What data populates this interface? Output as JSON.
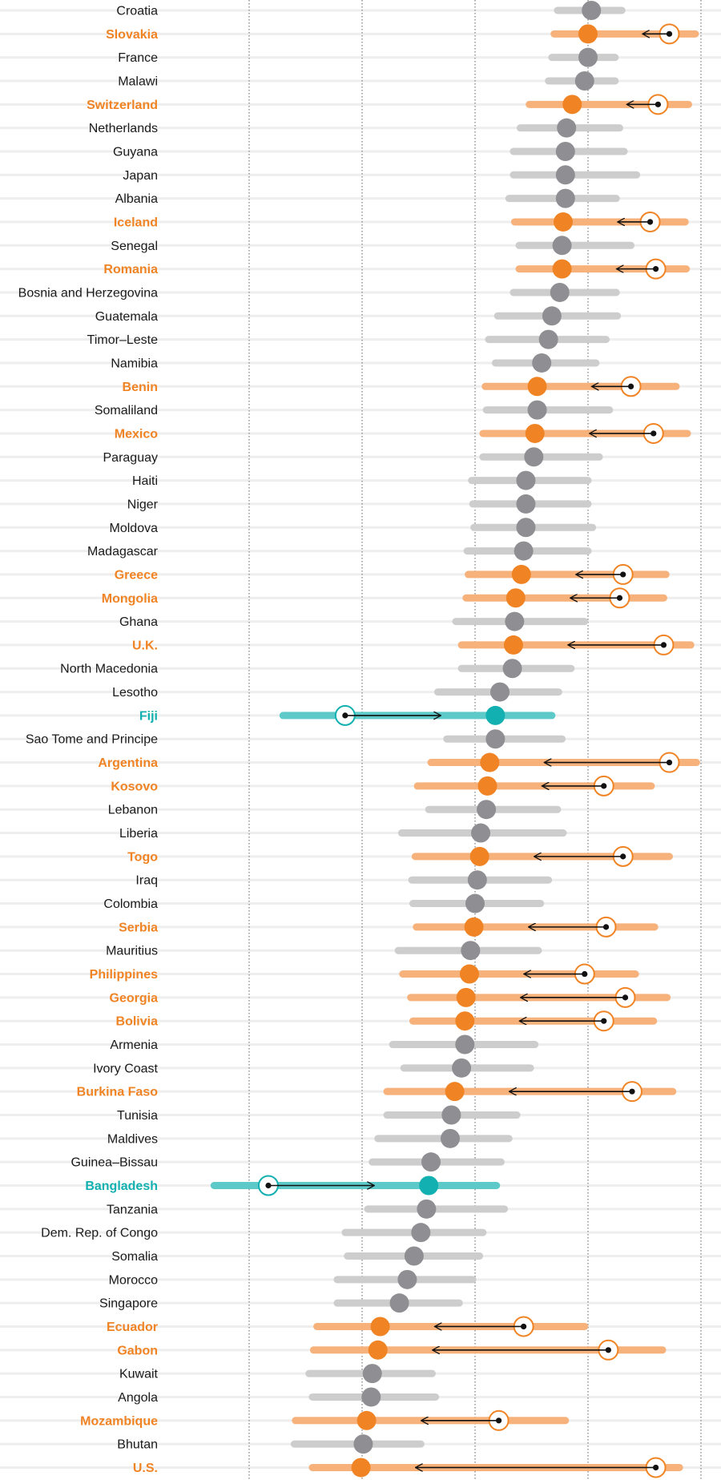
{
  "chart_data": {
    "type": "dot-range",
    "x_lim": [
      0,
      5
    ],
    "gridlines": [
      1,
      2,
      3,
      4,
      5
    ],
    "colors": {
      "neutral_dot": "#8e8e93",
      "neutral_band": "#cdcdcd",
      "orange": "#f08424",
      "orange_band": "#f7b27c",
      "teal": "#12b0b0",
      "teal_band": "#5ec9c9",
      "row_line": "#eeeeee",
      "grid": "#7a7a7a",
      "arrow": "#111111"
    },
    "countries": [
      {
        "name": "Croatia",
        "value": 4.03,
        "low": 3.73,
        "high": 4.3,
        "group": "none"
      },
      {
        "name": "Slovakia",
        "value": 4.0,
        "low": 3.7,
        "high": 4.95,
        "group": "orange",
        "prev": 4.72
      },
      {
        "name": "France",
        "value": 4.0,
        "low": 3.68,
        "high": 4.24,
        "group": "none"
      },
      {
        "name": "Malawi",
        "value": 3.97,
        "low": 3.65,
        "high": 4.24,
        "group": "none"
      },
      {
        "name": "Switzerland",
        "value": 3.86,
        "low": 3.48,
        "high": 4.89,
        "group": "orange",
        "prev": 4.62
      },
      {
        "name": "Netherlands",
        "value": 3.81,
        "low": 3.4,
        "high": 4.28,
        "group": "none"
      },
      {
        "name": "Guyana",
        "value": 3.8,
        "low": 3.34,
        "high": 4.32,
        "group": "none"
      },
      {
        "name": "Japan",
        "value": 3.8,
        "low": 3.34,
        "high": 4.43,
        "group": "none"
      },
      {
        "name": "Albania",
        "value": 3.8,
        "low": 3.3,
        "high": 4.25,
        "group": "none"
      },
      {
        "name": "Iceland",
        "value": 3.78,
        "low": 3.35,
        "high": 4.86,
        "group": "orange",
        "prev": 4.55
      },
      {
        "name": "Senegal",
        "value": 3.77,
        "low": 3.39,
        "high": 4.38,
        "group": "none"
      },
      {
        "name": "Romania",
        "value": 3.77,
        "low": 3.39,
        "high": 4.87,
        "group": "orange",
        "prev": 4.6
      },
      {
        "name": "Bosnia and Herzegovina",
        "value": 3.75,
        "low": 3.34,
        "high": 4.25,
        "group": "none"
      },
      {
        "name": "Guatemala",
        "value": 3.68,
        "low": 3.2,
        "high": 4.26,
        "group": "none"
      },
      {
        "name": "Timor–Leste",
        "value": 3.65,
        "low": 3.12,
        "high": 4.16,
        "group": "none"
      },
      {
        "name": "Namibia",
        "value": 3.59,
        "low": 3.18,
        "high": 4.07,
        "group": "none"
      },
      {
        "name": "Benin",
        "value": 3.55,
        "low": 3.09,
        "high": 4.78,
        "group": "orange",
        "prev": 4.38
      },
      {
        "name": "Somaliland",
        "value": 3.55,
        "low": 3.1,
        "high": 4.19,
        "group": "none"
      },
      {
        "name": "Mexico",
        "value": 3.53,
        "low": 3.07,
        "high": 4.88,
        "group": "orange",
        "prev": 4.58
      },
      {
        "name": "Paraguay",
        "value": 3.52,
        "low": 3.07,
        "high": 4.1,
        "group": "none"
      },
      {
        "name": "Haiti",
        "value": 3.45,
        "low": 2.97,
        "high": 4.0,
        "group": "none"
      },
      {
        "name": "Niger",
        "value": 3.45,
        "low": 2.98,
        "high": 4.0,
        "group": "none"
      },
      {
        "name": "Moldova",
        "value": 3.45,
        "low": 2.99,
        "high": 4.04,
        "group": "none"
      },
      {
        "name": "Madagascar",
        "value": 3.43,
        "low": 2.93,
        "high": 4.0,
        "group": "none"
      },
      {
        "name": "Greece",
        "value": 3.41,
        "low": 2.94,
        "high": 4.69,
        "group": "orange",
        "prev": 4.31
      },
      {
        "name": "Mongolia",
        "value": 3.36,
        "low": 2.92,
        "high": 4.67,
        "group": "orange",
        "prev": 4.28
      },
      {
        "name": "Ghana",
        "value": 3.35,
        "low": 2.83,
        "high": 3.97,
        "group": "none"
      },
      {
        "name": "U.K.",
        "value": 3.34,
        "low": 2.88,
        "high": 4.91,
        "group": "orange",
        "prev": 4.67
      },
      {
        "name": "North Macedonia",
        "value": 3.33,
        "low": 2.88,
        "high": 3.85,
        "group": "none"
      },
      {
        "name": "Lesotho",
        "value": 3.22,
        "low": 2.67,
        "high": 3.74,
        "group": "none"
      },
      {
        "name": "Fiji",
        "value": 3.18,
        "low": 1.3,
        "high": 3.68,
        "group": "teal",
        "prev": 1.85
      },
      {
        "name": "Sao Tome and Principe",
        "value": 3.18,
        "low": 2.75,
        "high": 3.77,
        "group": "none"
      },
      {
        "name": "Argentina",
        "value": 3.13,
        "low": 2.61,
        "high": 4.96,
        "group": "orange",
        "prev": 4.72
      },
      {
        "name": "Kosovo",
        "value": 3.11,
        "low": 2.49,
        "high": 4.56,
        "group": "orange",
        "prev": 4.14
      },
      {
        "name": "Lebanon",
        "value": 3.1,
        "low": 2.59,
        "high": 3.73,
        "group": "none"
      },
      {
        "name": "Liberia",
        "value": 3.05,
        "low": 2.35,
        "high": 3.78,
        "group": "none"
      },
      {
        "name": "Togo",
        "value": 3.04,
        "low": 2.47,
        "high": 4.72,
        "group": "orange",
        "prev": 4.31
      },
      {
        "name": "Iraq",
        "value": 3.02,
        "low": 2.44,
        "high": 3.65,
        "group": "none"
      },
      {
        "name": "Colombia",
        "value": 3.0,
        "low": 2.45,
        "high": 3.58,
        "group": "none"
      },
      {
        "name": "Serbia",
        "value": 2.99,
        "low": 2.48,
        "high": 4.59,
        "group": "orange",
        "prev": 4.16
      },
      {
        "name": "Mauritius",
        "value": 2.96,
        "low": 2.32,
        "high": 3.56,
        "group": "none"
      },
      {
        "name": "Philippines",
        "value": 2.95,
        "low": 2.36,
        "high": 4.42,
        "group": "orange",
        "prev": 3.97
      },
      {
        "name": "Georgia",
        "value": 2.92,
        "low": 2.43,
        "high": 4.7,
        "group": "orange",
        "prev": 4.33
      },
      {
        "name": "Bolivia",
        "value": 2.91,
        "low": 2.45,
        "high": 4.58,
        "group": "orange",
        "prev": 4.14
      },
      {
        "name": "Armenia",
        "value": 2.91,
        "low": 2.27,
        "high": 3.53,
        "group": "none"
      },
      {
        "name": "Ivory Coast",
        "value": 2.88,
        "low": 2.37,
        "high": 3.49,
        "group": "none"
      },
      {
        "name": "Burkina Faso",
        "value": 2.82,
        "low": 2.22,
        "high": 4.75,
        "group": "orange",
        "prev": 4.39
      },
      {
        "name": "Tunisia",
        "value": 2.79,
        "low": 2.22,
        "high": 3.37,
        "group": "none"
      },
      {
        "name": "Maldives",
        "value": 2.78,
        "low": 2.14,
        "high": 3.3,
        "group": "none"
      },
      {
        "name": "Guinea–Bissau",
        "value": 2.61,
        "low": 2.09,
        "high": 3.23,
        "group": "none"
      },
      {
        "name": "Bangladesh",
        "value": 2.59,
        "low": 0.69,
        "high": 3.19,
        "group": "teal",
        "prev": 1.17
      },
      {
        "name": "Tanzania",
        "value": 2.57,
        "low": 2.05,
        "high": 3.26,
        "group": "none"
      },
      {
        "name": "Dem. Rep. of Congo",
        "value": 2.52,
        "low": 1.85,
        "high": 3.07,
        "group": "none"
      },
      {
        "name": "Somalia",
        "value": 2.46,
        "low": 1.87,
        "high": 3.04,
        "group": "none"
      },
      {
        "name": "Morocco",
        "value": 2.4,
        "low": 1.78,
        "high": 2.98,
        "group": "none"
      },
      {
        "name": "Singapore",
        "value": 2.33,
        "low": 1.78,
        "high": 2.86,
        "group": "none"
      },
      {
        "name": "Ecuador",
        "value": 2.16,
        "low": 1.6,
        "high": 3.97,
        "group": "orange",
        "prev": 3.43
      },
      {
        "name": "Gabon",
        "value": 2.14,
        "low": 1.57,
        "high": 4.66,
        "group": "orange",
        "prev": 4.18
      },
      {
        "name": "Kuwait",
        "value": 2.09,
        "low": 1.53,
        "high": 2.62,
        "group": "none"
      },
      {
        "name": "Angola",
        "value": 2.08,
        "low": 1.56,
        "high": 2.65,
        "group": "none"
      },
      {
        "name": "Mozambique",
        "value": 2.04,
        "low": 1.41,
        "high": 3.8,
        "group": "orange",
        "prev": 3.21
      },
      {
        "name": "Bhutan",
        "value": 2.01,
        "low": 1.4,
        "high": 2.52,
        "group": "none"
      },
      {
        "name": "U.S.",
        "value": 1.99,
        "low": 1.56,
        "high": 4.81,
        "group": "orange",
        "prev": 4.6
      }
    ]
  }
}
